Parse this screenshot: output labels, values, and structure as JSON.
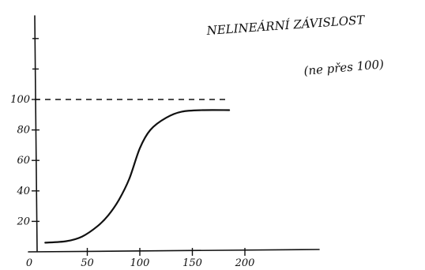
{
  "chart_data": {
    "type": "line",
    "title": "NELINEÁRNÍ ZÁVISLOST",
    "subtitle": "(ne přes 100)",
    "xlabel": "",
    "ylabel": "",
    "xlim": [
      0,
      260
    ],
    "ylim": [
      0,
      145
    ],
    "x_ticks": [
      0,
      50,
      100,
      150,
      200
    ],
    "y_ticks": [
      20,
      40,
      60,
      80,
      100
    ],
    "y_unlabeled_ticks": [
      120,
      140
    ],
    "grid": false,
    "reference_lines": [
      {
        "type": "horizontal",
        "y": 100,
        "x_range": [
          0,
          185
        ],
        "style": "dashed"
      }
    ],
    "series": [
      {
        "x": [
          10,
          30,
          45,
          60,
          70,
          80,
          90,
          100,
          110,
          125,
          140,
          160,
          185
        ],
        "y": [
          6,
          7,
          10,
          17,
          24,
          34,
          48,
          68,
          80,
          88,
          92,
          93,
          93
        ]
      }
    ]
  }
}
